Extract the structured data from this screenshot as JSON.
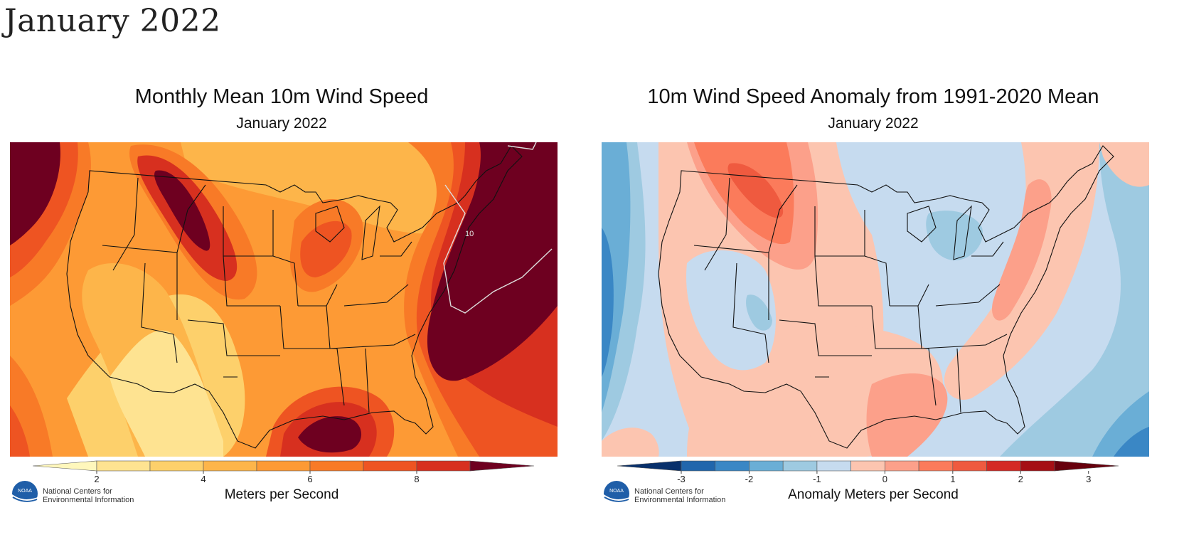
{
  "page": {
    "title": "January 2022"
  },
  "panels": [
    {
      "title": "Monthly Mean 10m Wind Speed",
      "subtitle": "January 2022",
      "units": "Meters per Second",
      "contour_label": "10",
      "colorbar": {
        "ticks": [
          "2",
          "4",
          "6",
          "8"
        ],
        "colors": [
          "#fff7bc",
          "#fee391",
          "#fdd06b",
          "#fdb54a",
          "#fd9a35",
          "#f87a27",
          "#ee5422",
          "#d7301f",
          "#6e0020"
        ]
      },
      "colors": {
        "c1": "#fee391",
        "c2": "#fdd06b",
        "c3": "#fdb54a",
        "c4": "#fd9a35",
        "c5": "#f87a27",
        "c6": "#ee5422",
        "c7": "#d7301f",
        "c8": "#6e0020"
      }
    },
    {
      "title": "10m Wind Speed Anomaly from 1991-2020 Mean",
      "subtitle": "January 2022",
      "units": "Anomaly Meters per Second",
      "colorbar": {
        "ticks": [
          "-3",
          "-2",
          "-1",
          "0",
          "1",
          "2",
          "3"
        ],
        "colors": [
          "#08306b",
          "#2166ac",
          "#3a87c5",
          "#6aaed6",
          "#9ecae1",
          "#c6dbef",
          "#fcc5b0",
          "#fca08a",
          "#fb7b5b",
          "#ef5a3f",
          "#d42a24",
          "#a50f15",
          "#67000d"
        ]
      },
      "colors": {
        "neg3": "#3a87c5",
        "neg2": "#6aaed6",
        "neg1": "#9ecae1",
        "neg0": "#c6dbef",
        "pos0": "#fcc5b0",
        "pos1": "#fca08a",
        "pos2": "#fb7b5b",
        "pos3": "#ef5a3f",
        "pos4": "#d42a24"
      }
    }
  ],
  "logo": {
    "line1": "National Centers for",
    "line2": "Environmental Information",
    "badge": "NOAA"
  }
}
